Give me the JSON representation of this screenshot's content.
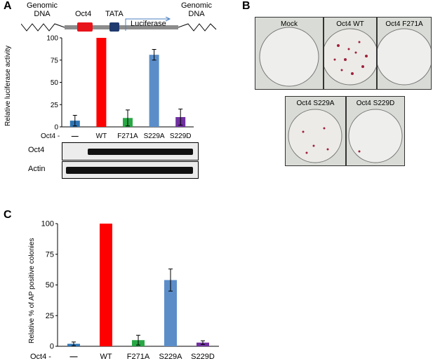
{
  "panels": {
    "a": "A",
    "b": "B",
    "c": "C"
  },
  "construct": {
    "genomic_left": [
      "Genomic",
      "DNA"
    ],
    "genomic_right": [
      "Genomic",
      "DNA"
    ],
    "oct4_site": "Oct4",
    "tata": "TATA",
    "luciferase": "Luciferase",
    "colors": {
      "oct4_box": "#e8141b",
      "tata_box": "#1f3a6e",
      "backbone": "#8c8c8c",
      "arrow": "#4a7fc1"
    }
  },
  "chart_a": {
    "type": "bar",
    "ylabel": "Relative luciferase activity",
    "ylim": [
      0,
      100
    ],
    "yticks": [
      0,
      25,
      50,
      75,
      100
    ],
    "row_label": "Oct4 -",
    "categories": [
      "—",
      "WT",
      "F271A",
      "S229A",
      "S229D"
    ],
    "values": [
      7,
      100,
      10,
      81,
      11
    ],
    "errors": [
      6,
      0,
      9,
      6,
      9
    ],
    "colors": [
      "#2e75b6",
      "#ff0000",
      "#28a745",
      "#5b8ec9",
      "#7030a0"
    ]
  },
  "blots": {
    "oct4": "Oct4",
    "actin": "Actin"
  },
  "plates": [
    "Mock",
    "Oct4 WT",
    "Oct4 F271A",
    "Oct4 S229A",
    "Oct4 S229D"
  ],
  "chart_data": {
    "type": "bar",
    "ylabel": "Relative % of AP positive colonies",
    "ylim": [
      0,
      100
    ],
    "yticks": [
      0,
      25,
      50,
      75,
      100
    ],
    "row_label": "Oct4 -",
    "categories": [
      "—",
      "WT",
      "F271A",
      "S229A",
      "S229D"
    ],
    "values": [
      2,
      100,
      5,
      54,
      3
    ],
    "errors": [
      1.5,
      0,
      4,
      9,
      1.5
    ],
    "colors": [
      "#2e75b6",
      "#ff0000",
      "#28a745",
      "#5b8ec9",
      "#7030a0"
    ]
  }
}
